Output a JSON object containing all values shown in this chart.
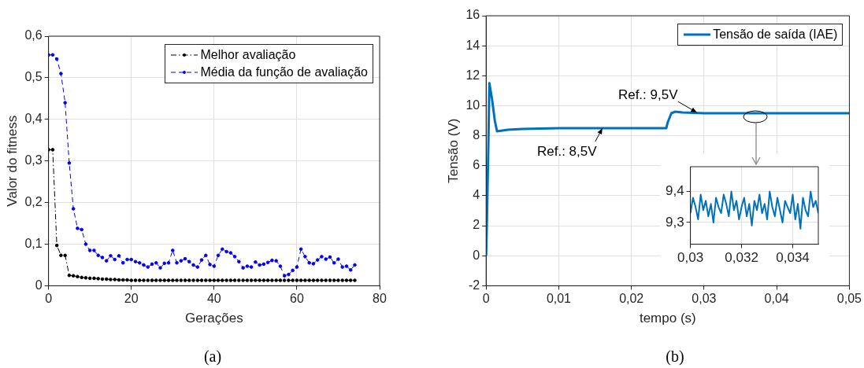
{
  "chart_data": [
    {
      "type": "line",
      "xlabel": "Gerações",
      "ylabel": "Valor do fitness",
      "x": [
        0,
        1,
        2,
        3,
        4,
        5,
        6,
        7,
        8,
        9,
        10,
        11,
        12,
        13,
        14,
        15,
        16,
        17,
        18,
        19,
        20,
        21,
        22,
        23,
        24,
        25,
        26,
        27,
        28,
        29,
        30,
        31,
        32,
        33,
        34,
        35,
        36,
        37,
        38,
        39,
        40,
        41,
        42,
        43,
        44,
        45,
        46,
        47,
        48,
        49,
        50,
        51,
        52,
        53,
        54,
        55,
        56,
        57,
        58,
        59,
        60,
        61,
        62,
        63,
        64,
        65,
        66,
        67,
        68,
        69,
        70,
        71,
        72,
        73,
        74
      ],
      "series": [
        {
          "name": "Melhor avaliação",
          "color": "#000000",
          "line_style": "dotted",
          "values": [
            0.327,
            0.327,
            0.097,
            0.073,
            0.073,
            0.025,
            0.024,
            0.022,
            0.02,
            0.019,
            0.018,
            0.018,
            0.017,
            0.016,
            0.016,
            0.015,
            0.015,
            0.014,
            0.014,
            0.014,
            0.013,
            0.013,
            0.013,
            0.013,
            0.013,
            0.013,
            0.013,
            0.013,
            0.013,
            0.013,
            0.013,
            0.013,
            0.013,
            0.013,
            0.013,
            0.013,
            0.013,
            0.013,
            0.013,
            0.013,
            0.013,
            0.013,
            0.013,
            0.013,
            0.013,
            0.013,
            0.013,
            0.013,
            0.013,
            0.013,
            0.013,
            0.013,
            0.013,
            0.013,
            0.013,
            0.013,
            0.013,
            0.013,
            0.013,
            0.013,
            0.013,
            0.013,
            0.013,
            0.013,
            0.013,
            0.013,
            0.013,
            0.013,
            0.013,
            0.013,
            0.013,
            0.013,
            0.013,
            0.013,
            0.013
          ]
        },
        {
          "name": "Média da função de avaliação",
          "color": "#0000ff",
          "line_style": "dashed",
          "values": [
            0.555,
            0.555,
            0.545,
            0.51,
            0.44,
            0.295,
            0.185,
            0.138,
            0.135,
            0.1,
            0.085,
            0.085,
            0.073,
            0.068,
            0.06,
            0.072,
            0.063,
            0.072,
            0.055,
            0.063,
            0.063,
            0.058,
            0.055,
            0.05,
            0.045,
            0.052,
            0.055,
            0.043,
            0.054,
            0.055,
            0.085,
            0.055,
            0.06,
            0.065,
            0.058,
            0.05,
            0.045,
            0.062,
            0.073,
            0.051,
            0.047,
            0.073,
            0.088,
            0.082,
            0.079,
            0.07,
            0.058,
            0.043,
            0.047,
            0.045,
            0.057,
            0.05,
            0.052,
            0.056,
            0.061,
            0.06,
            0.047,
            0.024,
            0.027,
            0.037,
            0.045,
            0.088,
            0.07,
            0.055,
            0.053,
            0.062,
            0.07,
            0.064,
            0.069,
            0.055,
            0.064,
            0.045,
            0.047,
            0.038,
            0.05
          ]
        }
      ],
      "xlim": [
        0,
        80
      ],
      "xticks": [
        0,
        20,
        40,
        60,
        80
      ],
      "ylim": [
        0,
        0.6
      ],
      "yticks": [
        0,
        {
          "value": 0.1,
          "label": "0,1"
        },
        {
          "value": 0.2,
          "label": "0,2"
        },
        {
          "value": 0.3,
          "label": "0,3"
        },
        {
          "value": 0.4,
          "label": "0,4"
        },
        {
          "value": 0.5,
          "label": "0,5"
        },
        {
          "value": 0.6,
          "label": "0,6"
        }
      ],
      "grid": true,
      "legend": "top right",
      "marker": "circle",
      "annotations": [
        "(a)"
      ]
    },
    {
      "type": "line",
      "xlabel": "tempo (s)",
      "ylabel": "Tensão (V)",
      "series": [
        {
          "name": "Tensão de saída (IAE)",
          "color": "#0072bd",
          "x": [
            0,
            0.0001,
            0.0003,
            0.00045,
            0.0008,
            0.0012,
            0.0015,
            0.003,
            0.005,
            0.01,
            0.015,
            0.02,
            0.0248,
            0.025,
            0.0255,
            0.026,
            0.027,
            0.03,
            0.035,
            0.04,
            0.045,
            0.05
          ],
          "values": [
            0,
            2,
            7,
            11.5,
            10.5,
            9,
            8.3,
            8.4,
            8.45,
            8.5,
            8.5,
            8.5,
            8.5,
            8.9,
            9.5,
            9.6,
            9.55,
            9.5,
            9.5,
            9.5,
            9.5,
            9.5
          ]
        }
      ],
      "xlim": [
        0,
        0.05
      ],
      "xticks": [
        0,
        {
          "value": 0.01,
          "label": "0,01"
        },
        {
          "value": 0.02,
          "label": "0,02"
        },
        {
          "value": 0.03,
          "label": "0,03"
        },
        {
          "value": 0.04,
          "label": "0,04"
        },
        {
          "value": 0.05,
          "label": "0,05"
        }
      ],
      "ylim": [
        -2,
        16
      ],
      "yticks": [
        -2,
        0,
        2,
        4,
        6,
        8,
        10,
        12,
        14,
        16
      ],
      "grid": true,
      "legend": "top right",
      "line_style": "solid",
      "annotations": [
        {
          "text": "Ref.: 8,5V",
          "x": 0.016,
          "y": 8.5
        },
        {
          "text": "Ref.: 9,5V",
          "x": 0.029,
          "y": 9.55
        },
        "(b)"
      ]
    },
    {
      "type": "line",
      "series": [
        {
          "color": "#0072bd",
          "x": [
            0.03,
            0.0301,
            0.0302,
            0.0303,
            0.0304,
            0.0305,
            0.0306,
            0.0307,
            0.0308,
            0.0309,
            0.031,
            0.0311,
            0.0312,
            0.0313,
            0.0314,
            0.0315,
            0.0316,
            0.0317,
            0.0318,
            0.0319,
            0.032,
            0.0321,
            0.0322,
            0.0323,
            0.0324,
            0.0325,
            0.0326,
            0.0327,
            0.0328,
            0.0329,
            0.033,
            0.0331,
            0.0332,
            0.0333,
            0.0334,
            0.0335,
            0.0336,
            0.0337,
            0.0338,
            0.0339,
            0.034,
            0.0341,
            0.0342,
            0.0343,
            0.0344,
            0.0345,
            0.0346,
            0.0347,
            0.0348,
            0.0349,
            0.035
          ],
          "values": [
            9.33,
            9.38,
            9.35,
            9.31,
            9.39,
            9.34,
            9.37,
            9.32,
            9.36,
            9.3,
            9.38,
            9.35,
            9.33,
            9.39,
            9.36,
            9.32,
            9.4,
            9.34,
            9.37,
            9.31,
            9.35,
            9.38,
            9.32,
            9.36,
            9.29,
            9.37,
            9.34,
            9.39,
            9.33,
            9.36,
            9.31,
            9.4,
            9.35,
            9.32,
            9.38,
            9.34,
            9.3,
            9.37,
            9.35,
            9.33,
            9.39,
            9.31,
            9.36,
            9.28,
            9.38,
            9.34,
            9.32,
            9.4,
            9.35,
            9.37,
            9.33
          ]
        }
      ],
      "xlim": [
        0.03,
        0.035
      ],
      "xticks": [
        {
          "value": 0.03,
          "label": "0,03"
        },
        {
          "value": 0.032,
          "label": "0,032"
        },
        {
          "value": 0.034,
          "label": "0,034"
        }
      ],
      "ylim": [
        9.23,
        9.48
      ],
      "yticks": [
        {
          "value": 9.3,
          "label": "9,3"
        },
        {
          "value": 9.4,
          "label": "9,4"
        }
      ],
      "grid": true,
      "line_style": "solid"
    }
  ]
}
